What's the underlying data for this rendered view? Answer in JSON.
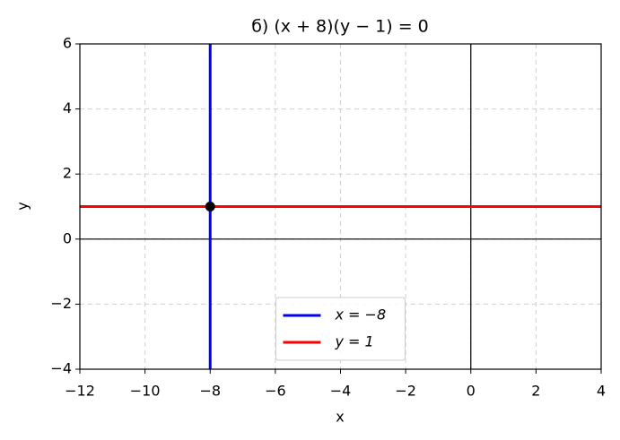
{
  "chart_data": {
    "type": "line",
    "title": "б) (x + 8)(y − 1) = 0",
    "x_label": "x",
    "y_label": "y",
    "xlim": [
      -12,
      4
    ],
    "ylim": [
      -4,
      6
    ],
    "xticks": [
      {
        "value": -12,
        "label": "−12"
      },
      {
        "value": -10,
        "label": "−10"
      },
      {
        "value": -8,
        "label": "−8"
      },
      {
        "value": -6,
        "label": "−6"
      },
      {
        "value": -4,
        "label": "−4"
      },
      {
        "value": -2,
        "label": "−2"
      },
      0,
      2,
      4
    ],
    "yticks": [
      {
        "value": -4,
        "label": "−4"
      },
      {
        "value": -2,
        "label": "−2"
      },
      0,
      2,
      4,
      6
    ],
    "grid": true,
    "legend": "lower center",
    "series": [
      {
        "name": "x = −8",
        "color": "#0000ff",
        "x": [
          -8,
          -8
        ],
        "values": [
          -4,
          6
        ]
      },
      {
        "name": "y = 1",
        "color": "#ff0000",
        "x": [
          -12,
          4
        ],
        "values": [
          1,
          1
        ]
      }
    ],
    "point": {
      "x": -8,
      "y": 1,
      "color": "#000000"
    }
  }
}
